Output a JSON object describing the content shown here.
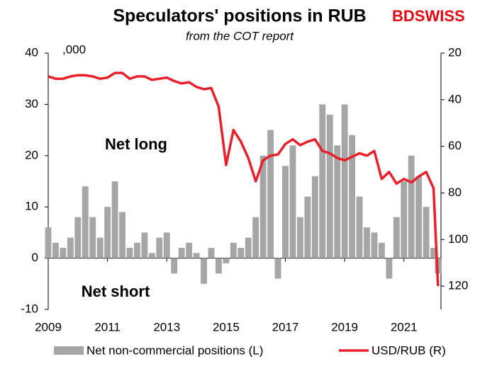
{
  "chart_data": {
    "type": "bar-line",
    "title": "Speculators' positions in RUB",
    "subtitle": "from the COT report",
    "logo": "BDSWISS",
    "unit_label": ",000",
    "annotations": [
      "Net long",
      "Net short"
    ],
    "x": [
      2009.0,
      2009.25,
      2009.5,
      2009.75,
      2010.0,
      2010.25,
      2010.5,
      2010.75,
      2011.0,
      2011.25,
      2011.5,
      2011.75,
      2012.0,
      2012.25,
      2012.5,
      2012.75,
      2013.0,
      2013.25,
      2013.5,
      2013.75,
      2014.0,
      2014.25,
      2014.5,
      2014.75,
      2015.0,
      2015.25,
      2015.5,
      2015.75,
      2016.0,
      2016.25,
      2016.5,
      2016.75,
      2017.0,
      2017.25,
      2017.5,
      2017.75,
      2018.0,
      2018.25,
      2018.5,
      2018.75,
      2019.0,
      2019.25,
      2019.5,
      2019.75,
      2020.0,
      2020.25,
      2020.5,
      2020.75,
      2021.0,
      2021.25,
      2021.5,
      2021.75,
      2022.0,
      2022.15
    ],
    "series": [
      {
        "name": "Net non-commercial positions (L)",
        "color": "#a6a6a6",
        "kind": "bar",
        "values": [
          6,
          3,
          2,
          4,
          8,
          14,
          8,
          4,
          10,
          15,
          9,
          2,
          3,
          5,
          1,
          4,
          5,
          -3,
          2,
          3,
          1,
          -5,
          2,
          -3,
          -1,
          3,
          2,
          4,
          8,
          20,
          25,
          -4,
          18,
          22,
          8,
          12,
          16,
          30,
          28,
          22,
          30,
          24,
          12,
          6,
          5,
          3,
          -4,
          8,
          15,
          20,
          16,
          10,
          2,
          -3
        ]
      },
      {
        "name": "USD/RUB (R)",
        "color": "#e8202a",
        "kind": "line",
        "axis": "y2",
        "values": [
          30,
          31,
          31,
          30,
          29.5,
          29.5,
          30,
          31,
          30.5,
          28.5,
          28.5,
          31,
          30,
          30,
          31.5,
          31,
          30.5,
          32,
          33,
          32.5,
          34.5,
          35.5,
          35,
          43,
          68,
          53,
          58,
          65,
          75,
          66,
          64,
          63.5,
          59,
          57,
          59.5,
          58,
          57,
          62,
          63,
          65,
          66,
          64.5,
          63,
          64,
          62,
          74,
          71,
          76,
          74,
          75.5,
          73,
          71,
          78,
          120
        ]
      }
    ],
    "xlim": [
      2009,
      2022.25
    ],
    "xticks": [
      2009,
      2011,
      2013,
      2015,
      2017,
      2019,
      2021
    ],
    "ylim": [
      -10,
      40
    ],
    "yticks": [
      -10,
      0,
      10,
      20,
      30,
      40
    ],
    "y2lim": [
      130,
      20
    ],
    "y2ticks": [
      20,
      40,
      60,
      80,
      100,
      120
    ]
  }
}
